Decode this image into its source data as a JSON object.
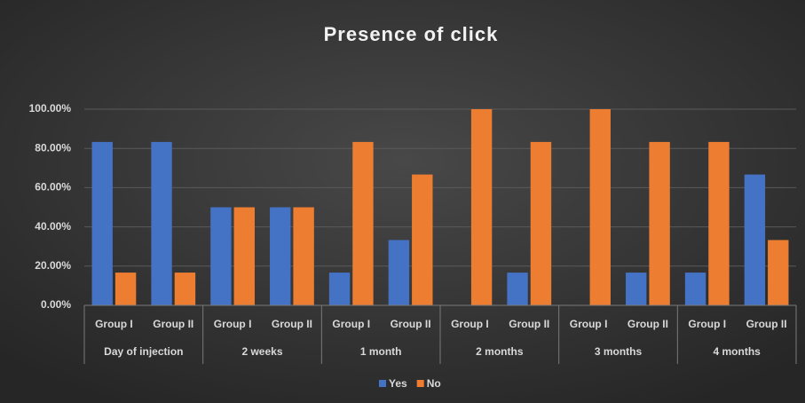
{
  "chart_data": {
    "type": "bar",
    "title": "Presence of click",
    "categories": [
      "Group I",
      "Group II",
      "Group I",
      "Group II",
      "Group I",
      "Group II",
      "Group I",
      "Group II",
      "Group I",
      "Group II",
      "Group I",
      "Group II"
    ],
    "groups": [
      "Day of injection",
      "2 weeks",
      "1 month",
      "2 months",
      "3 months",
      "4 months"
    ],
    "series": [
      {
        "name": "Yes",
        "color": "#4472c4",
        "values": [
          83.3,
          83.3,
          50,
          50,
          16.7,
          33.3,
          0,
          16.7,
          0,
          16.7,
          16.7,
          66.7
        ]
      },
      {
        "name": "No",
        "color": "#ed7d31",
        "values": [
          16.7,
          16.7,
          50,
          50,
          83.3,
          66.7,
          100,
          83.3,
          100,
          83.3,
          83.3,
          33.3
        ]
      }
    ],
    "ylim": [
      0,
      100
    ],
    "yticks": [
      {
        "value": 0,
        "label": "0.00%"
      },
      {
        "value": 20,
        "label": "20.00%"
      },
      {
        "value": 40,
        "label": "40.00%"
      },
      {
        "value": 60,
        "label": "60.00%"
      },
      {
        "value": 80,
        "label": "80.00%"
      },
      {
        "value": 100,
        "label": "100.00%"
      }
    ],
    "grid": true,
    "legend": "bottom"
  }
}
